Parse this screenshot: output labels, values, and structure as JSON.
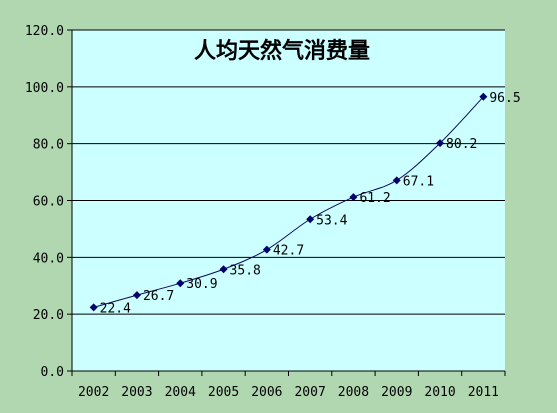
{
  "colors": {
    "chart_background": "#b0d7b0",
    "plot_background": "#ccffff",
    "line": "#0b0b5c",
    "marker": "#00006e",
    "gridline": "#000000"
  },
  "chart_data": {
    "type": "line",
    "title": "人均天然气消费量",
    "categories": [
      "2002",
      "2003",
      "2004",
      "2005",
      "2006",
      "2007",
      "2008",
      "2009",
      "2010",
      "2011"
    ],
    "series": [
      {
        "values": [
          22.4,
          26.7,
          30.9,
          35.8,
          42.7,
          53.4,
          61.2,
          67.1,
          80.2,
          96.5
        ]
      }
    ],
    "data_labels": [
      "22.4",
      "26.7",
      "30.9",
      "35.8",
      "42.7",
      "53.4",
      "61.2",
      "67.1",
      "80.2",
      "96.5"
    ],
    "y_tick_labels": [
      "0.0",
      "20.0",
      "40.0",
      "60.0",
      "80.0",
      "100.0",
      "120.0"
    ],
    "y_ticks": [
      0,
      20,
      40,
      60,
      80,
      100,
      120
    ],
    "ylim": [
      0,
      120
    ],
    "xlabel": "",
    "ylabel": "",
    "grid": "horizontal",
    "marker": "diamond",
    "legend": "none"
  }
}
